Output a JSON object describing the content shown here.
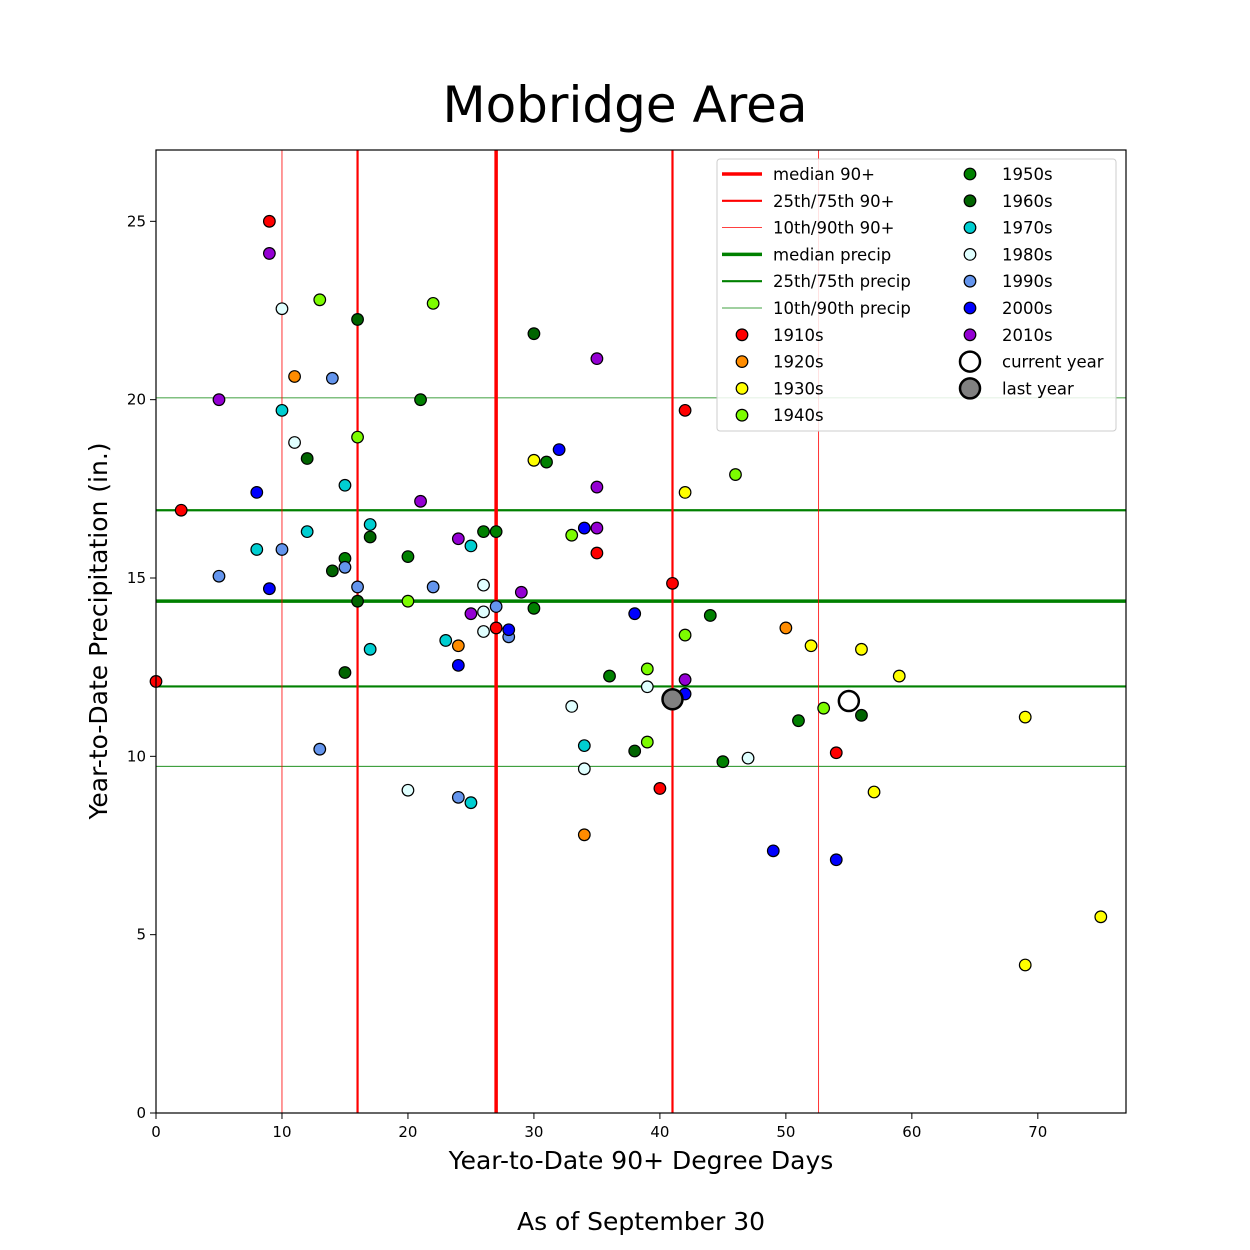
{
  "chart_data": {
    "type": "scatter",
    "title": "Mobridge Area",
    "xlabel": "Year-to-Date 90+ Degree Days",
    "ylabel": "Year-to-Date Precipitation (in.)",
    "caption": "As of September 30",
    "xlim": [
      0,
      77
    ],
    "ylim": [
      0,
      27
    ],
    "xticks": [
      0,
      10,
      20,
      30,
      40,
      50,
      60,
      70
    ],
    "yticks": [
      0,
      5,
      10,
      15,
      20,
      25
    ],
    "grid": false,
    "legend_position": "top-right",
    "reference_lines": {
      "vertical": [
        {
          "name": "median 90+",
          "value": 27,
          "color": "#ff0000",
          "weight": "heavy"
        },
        {
          "name": "25th/75th 90+",
          "value": 16,
          "color": "#ff0000",
          "weight": "medium"
        },
        {
          "name": "25th/75th 90+",
          "value": 41,
          "color": "#ff0000",
          "weight": "medium"
        },
        {
          "name": "10th/90th 90+",
          "value": 10,
          "color": "#ff0000",
          "weight": "thin"
        },
        {
          "name": "10th/90th 90+",
          "value": 52.6,
          "color": "#ff0000",
          "weight": "thin"
        }
      ],
      "horizontal": [
        {
          "name": "median precip",
          "value": 14.35,
          "color": "#008000",
          "weight": "heavy"
        },
        {
          "name": "25th/75th precip",
          "value": 11.96,
          "color": "#008000",
          "weight": "medium"
        },
        {
          "name": "25th/75th precip",
          "value": 16.9,
          "color": "#008000",
          "weight": "medium"
        },
        {
          "name": "10th/90th precip",
          "value": 9.72,
          "color": "#008000",
          "weight": "thin"
        },
        {
          "name": "10th/90th precip",
          "value": 20.05,
          "color": "#008000",
          "weight": "thin"
        }
      ]
    },
    "series": [
      {
        "name": "1910s",
        "color": "#ff0000",
        "points": [
          [
            9,
            25
          ],
          [
            0,
            12.1
          ],
          [
            2,
            16.9
          ],
          [
            35,
            15.7
          ],
          [
            41,
            14.85
          ],
          [
            27,
            13.6
          ],
          [
            42,
            19.7
          ],
          [
            54,
            10.1
          ],
          [
            40,
            9.1
          ]
        ]
      },
      {
        "name": "1920s",
        "color": "#ff8c00",
        "points": [
          [
            11,
            20.65
          ],
          [
            24,
            13.1
          ],
          [
            50,
            13.6
          ],
          [
            34,
            7.8
          ]
        ]
      },
      {
        "name": "1930s",
        "color": "#ffff00",
        "points": [
          [
            30,
            18.3
          ],
          [
            42,
            17.4
          ],
          [
            52,
            13.1
          ],
          [
            56,
            13.0
          ],
          [
            59,
            12.25
          ],
          [
            69,
            11.1
          ],
          [
            57,
            9.0
          ],
          [
            75,
            5.5
          ],
          [
            69,
            4.15
          ]
        ]
      },
      {
        "name": "1940s",
        "color": "#7cfc00",
        "points": [
          [
            13,
            22.8
          ],
          [
            22,
            22.7
          ],
          [
            16,
            18.95
          ],
          [
            20,
            14.35
          ],
          [
            33,
            16.2
          ],
          [
            46,
            17.9
          ],
          [
            42,
            13.4
          ],
          [
            39,
            12.45
          ],
          [
            53,
            11.35
          ],
          [
            39,
            10.4
          ]
        ]
      },
      {
        "name": "1950s",
        "color": "#008000",
        "points": [
          [
            21,
            20.0
          ],
          [
            31,
            18.25
          ],
          [
            26,
            16.3
          ],
          [
            27,
            16.3
          ],
          [
            20,
            15.6
          ],
          [
            15,
            15.55
          ],
          [
            30,
            14.15
          ],
          [
            36,
            12.25
          ],
          [
            44,
            13.95
          ],
          [
            51,
            11.0
          ],
          [
            45,
            9.85
          ]
        ]
      },
      {
        "name": "1960s",
        "color": "#006400",
        "points": [
          [
            16,
            22.25
          ],
          [
            30,
            21.85
          ],
          [
            12,
            18.35
          ],
          [
            17,
            16.15
          ],
          [
            14,
            15.2
          ],
          [
            16,
            14.35
          ],
          [
            15,
            12.35
          ],
          [
            38,
            10.15
          ],
          [
            56,
            11.15
          ]
        ]
      },
      {
        "name": "1970s",
        "color": "#00ced1",
        "points": [
          [
            10,
            19.7
          ],
          [
            15,
            17.6
          ],
          [
            17,
            16.5
          ],
          [
            12,
            16.3
          ],
          [
            8,
            15.8
          ],
          [
            25,
            15.9
          ],
          [
            23,
            13.25
          ],
          [
            17,
            13.0
          ],
          [
            34,
            10.3
          ],
          [
            25,
            8.7
          ]
        ]
      },
      {
        "name": "1980s",
        "color": "#e0ffff",
        "points": [
          [
            10,
            22.55
          ],
          [
            11,
            18.8
          ],
          [
            26,
            14.8
          ],
          [
            26,
            14.05
          ],
          [
            26,
            13.5
          ],
          [
            39,
            11.95
          ],
          [
            33,
            11.4
          ],
          [
            34,
            9.65
          ],
          [
            47,
            9.95
          ],
          [
            20,
            9.05
          ]
        ]
      },
      {
        "name": "1990s",
        "color": "#6495ed",
        "points": [
          [
            14,
            20.6
          ],
          [
            10,
            15.8
          ],
          [
            5,
            15.05
          ],
          [
            15,
            15.3
          ],
          [
            16,
            14.75
          ],
          [
            22,
            14.75
          ],
          [
            27,
            14.2
          ],
          [
            28,
            13.35
          ],
          [
            13,
            10.2
          ],
          [
            24,
            8.85
          ]
        ]
      },
      {
        "name": "2000s",
        "color": "#0000ff",
        "points": [
          [
            8,
            17.4
          ],
          [
            9,
            14.7
          ],
          [
            32,
            18.6
          ],
          [
            34,
            16.4
          ],
          [
            28,
            13.55
          ],
          [
            24,
            12.55
          ],
          [
            38,
            14.0
          ],
          [
            42,
            11.75
          ],
          [
            49,
            7.35
          ],
          [
            54,
            7.1
          ]
        ]
      },
      {
        "name": "2010s",
        "color": "#9400d3",
        "points": [
          [
            9,
            24.1
          ],
          [
            5,
            20.0
          ],
          [
            35,
            21.15
          ],
          [
            21,
            17.15
          ],
          [
            35,
            17.55
          ],
          [
            35,
            16.4
          ],
          [
            24,
            16.1
          ],
          [
            29,
            14.6
          ],
          [
            25,
            14.0
          ],
          [
            42,
            12.15
          ]
        ]
      }
    ],
    "highlights": [
      {
        "name": "current year",
        "x": 55,
        "y": 11.55,
        "color": "#ffffff"
      },
      {
        "name": "last year",
        "x": 41,
        "y": 11.6,
        "color": "#808080"
      }
    ],
    "legend": {
      "lines": [
        {
          "label": "median 90+",
          "color": "#ff0000",
          "weight": "heavy"
        },
        {
          "label": "25th/75th 90+",
          "color": "#ff0000",
          "weight": "medium"
        },
        {
          "label": "10th/90th 90+",
          "color": "#ff0000",
          "weight": "thin"
        },
        {
          "label": "median precip",
          "color": "#008000",
          "weight": "heavy"
        },
        {
          "label": "25th/75th precip",
          "color": "#008000",
          "weight": "medium"
        },
        {
          "label": "10th/90th precip",
          "color": "#008000",
          "weight": "thin"
        }
      ],
      "markers": [
        {
          "label": "1910s",
          "color": "#ff0000"
        },
        {
          "label": "1920s",
          "color": "#ff8c00"
        },
        {
          "label": "1930s",
          "color": "#ffff00"
        },
        {
          "label": "1940s",
          "color": "#7cfc00"
        },
        {
          "label": "1950s",
          "color": "#008000"
        },
        {
          "label": "1960s",
          "color": "#006400"
        },
        {
          "label": "1970s",
          "color": "#00ced1"
        },
        {
          "label": "1980s",
          "color": "#e0ffff"
        },
        {
          "label": "1990s",
          "color": "#6495ed"
        },
        {
          "label": "2000s",
          "color": "#0000ff"
        },
        {
          "label": "2010s",
          "color": "#9400d3"
        }
      ],
      "highlight_markers": [
        {
          "label": "current year",
          "color": "#ffffff"
        },
        {
          "label": "last year",
          "color": "#808080"
        }
      ]
    }
  }
}
